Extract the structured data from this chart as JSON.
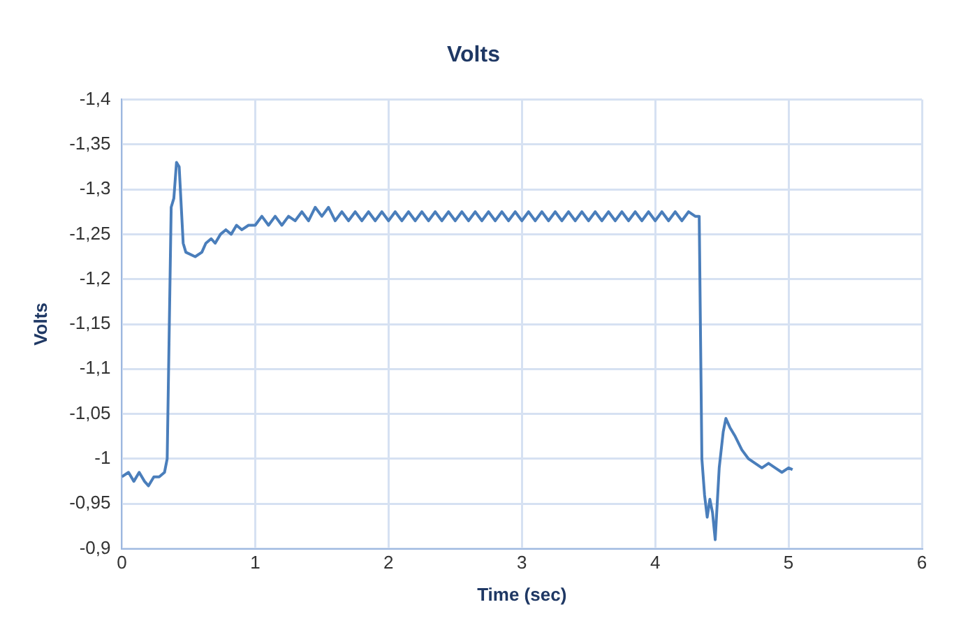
{
  "chart_data": {
    "type": "line",
    "title": "Volts",
    "xlabel": "Time (sec)",
    "ylabel": "Volts",
    "xlim": [
      0,
      6
    ],
    "xticks": [
      0,
      1,
      2,
      3,
      4,
      5,
      6
    ],
    "ylim": [
      -0.9,
      -1.4
    ],
    "yticks": [
      {
        "value": -0.9,
        "label": "-0,9"
      },
      {
        "value": -0.95,
        "label": "-0,95"
      },
      {
        "value": -1,
        "label": "-1"
      },
      {
        "value": -1.05,
        "label": "-1,05"
      },
      {
        "value": -1.1,
        "label": "-1,1"
      },
      {
        "value": -1.15,
        "label": "-1,15"
      },
      {
        "value": -1.2,
        "label": "-1,2"
      },
      {
        "value": -1.25,
        "label": "-1,25"
      },
      {
        "value": -1.3,
        "label": "-1,3"
      },
      {
        "value": -1.35,
        "label": "-1,35"
      },
      {
        "value": -1.4,
        "label": "-1,4"
      }
    ],
    "grid": true,
    "marker": "none",
    "line_style": "solid",
    "x": [
      0,
      0.05,
      0.09,
      0.13,
      0.17,
      0.2,
      0.24,
      0.28,
      0.32,
      0.34,
      0.37,
      0.39,
      0.41,
      0.43,
      0.46,
      0.48,
      0.55,
      0.6,
      0.63,
      0.67,
      0.7,
      0.74,
      0.78,
      0.82,
      0.86,
      0.9,
      0.95,
      1.0,
      1.05,
      1.1,
      1.15,
      1.2,
      1.25,
      1.3,
      1.35,
      1.4,
      1.45,
      1.5,
      1.55,
      1.6,
      1.65,
      1.7,
      1.75,
      1.8,
      1.85,
      1.9,
      1.95,
      2.0,
      2.05,
      2.1,
      2.15,
      2.2,
      2.25,
      2.3,
      2.35,
      2.4,
      2.45,
      2.5,
      2.55,
      2.6,
      2.65,
      2.7,
      2.75,
      2.8,
      2.85,
      2.9,
      2.95,
      3.0,
      3.05,
      3.1,
      3.15,
      3.2,
      3.25,
      3.3,
      3.35,
      3.4,
      3.45,
      3.5,
      3.55,
      3.6,
      3.65,
      3.7,
      3.75,
      3.8,
      3.85,
      3.9,
      3.95,
      4.0,
      4.05,
      4.1,
      4.15,
      4.2,
      4.25,
      4.3,
      4.33,
      4.35,
      4.37,
      4.39,
      4.41,
      4.43,
      4.45,
      4.48,
      4.51,
      4.53,
      4.56,
      4.6,
      4.65,
      4.7,
      4.75,
      4.8,
      4.85,
      4.9,
      4.95,
      5.0,
      5.03
    ],
    "series": [
      {
        "color": "#4a7ebb",
        "values": [
          -0.98,
          -0.985,
          -0.975,
          -0.985,
          -0.975,
          -0.97,
          -0.98,
          -0.98,
          -0.985,
          -1.0,
          -1.28,
          -1.29,
          -1.33,
          -1.325,
          -1.24,
          -1.23,
          -1.225,
          -1.23,
          -1.24,
          -1.245,
          -1.24,
          -1.25,
          -1.255,
          -1.25,
          -1.26,
          -1.255,
          -1.26,
          -1.26,
          -1.27,
          -1.26,
          -1.27,
          -1.26,
          -1.27,
          -1.265,
          -1.275,
          -1.265,
          -1.28,
          -1.27,
          -1.28,
          -1.265,
          -1.275,
          -1.265,
          -1.275,
          -1.265,
          -1.275,
          -1.265,
          -1.275,
          -1.265,
          -1.275,
          -1.265,
          -1.275,
          -1.265,
          -1.275,
          -1.265,
          -1.275,
          -1.265,
          -1.275,
          -1.265,
          -1.275,
          -1.265,
          -1.275,
          -1.265,
          -1.275,
          -1.265,
          -1.275,
          -1.265,
          -1.275,
          -1.265,
          -1.275,
          -1.265,
          -1.275,
          -1.265,
          -1.275,
          -1.265,
          -1.275,
          -1.265,
          -1.275,
          -1.265,
          -1.275,
          -1.265,
          -1.275,
          -1.265,
          -1.275,
          -1.265,
          -1.275,
          -1.265,
          -1.275,
          -1.265,
          -1.275,
          -1.265,
          -1.275,
          -1.265,
          -1.275,
          -1.27,
          -1.27,
          -1.0,
          -0.96,
          -0.935,
          -0.955,
          -0.94,
          -0.91,
          -0.99,
          -1.03,
          -1.045,
          -1.035,
          -1.025,
          -1.01,
          -1.0,
          -0.995,
          -0.99,
          -0.995,
          -0.99,
          -0.985,
          -0.99,
          -0.988
        ]
      }
    ]
  }
}
